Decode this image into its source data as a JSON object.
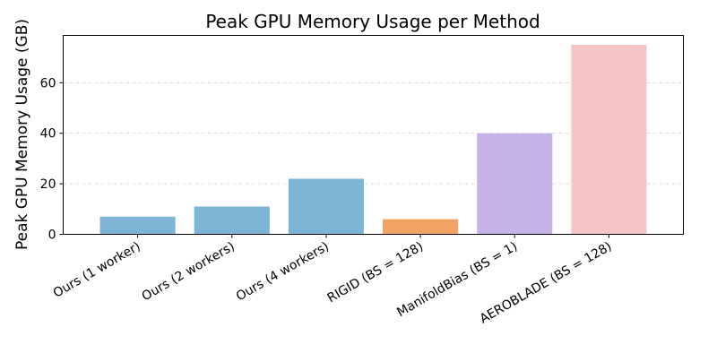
{
  "chart_data": {
    "type": "bar",
    "title": "Peak GPU Memory Usage per Method",
    "xlabel": "",
    "ylabel": "Peak GPU Memory Usage (GB)",
    "categories": [
      "Ours (1 worker)",
      "Ours (2 workers)",
      "Ours (4 workers)",
      "RIGID (BS = 128)",
      "ManifoldBias (BS = 1)",
      "AEROBLADE (BS = 128)"
    ],
    "values": [
      7,
      11,
      22,
      6,
      40,
      75
    ],
    "colors": [
      "#7eb5d7",
      "#7eb5d7",
      "#7eb5d7",
      "#f2a361",
      "#c5b3e5",
      "#f6c6c7"
    ],
    "ylim": [
      0,
      78.75
    ],
    "yticks": [
      0,
      20,
      40,
      60
    ],
    "grid": "y-dashed",
    "legend": "none"
  }
}
